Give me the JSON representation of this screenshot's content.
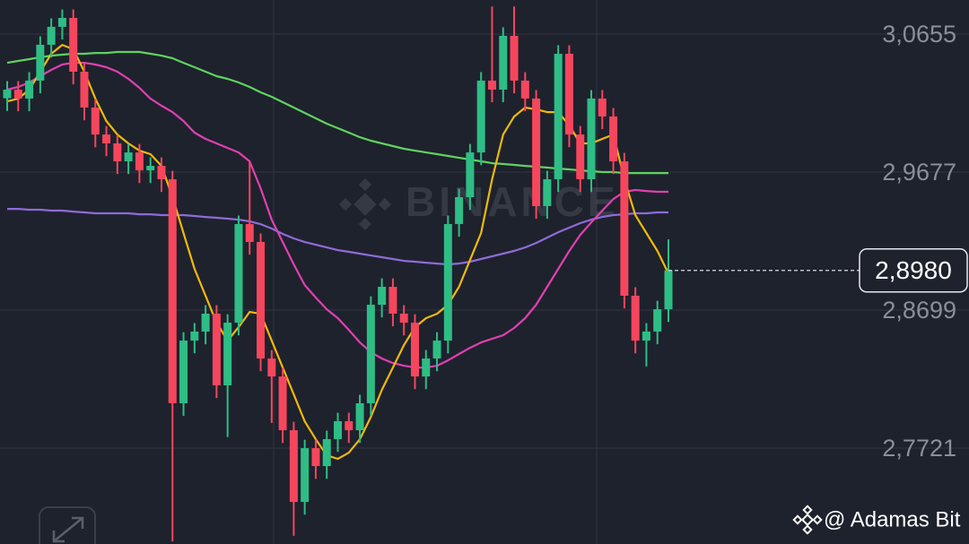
{
  "chart_data": {
    "type": "candlestick",
    "watermark": "BINANCE",
    "credit": "@ Adamas Bit",
    "up_color": "#2ebd85",
    "down_color": "#f6465d",
    "grid": true,
    "ylim": [
      2.7042,
      3.0896
    ],
    "yticks": [
      {
        "value": 3.0655,
        "label": "3,0655"
      },
      {
        "value": 2.9677,
        "label": "2,9677"
      },
      {
        "value": 2.8699,
        "label": "2,8699"
      },
      {
        "value": 2.7721,
        "label": "2,7721"
      }
    ],
    "last_price": {
      "value": 2.898,
      "label": "2,8980"
    },
    "open": [
      3.02,
      3.0261,
      3.0198,
      3.0325,
      3.0579,
      3.0706,
      3.0769,
      3.0388,
      3.0134,
      2.9943,
      2.988,
      2.9753,
      2.9816,
      2.9689,
      2.9721,
      2.9626,
      2.8039,
      2.8483,
      2.8547,
      2.8674,
      2.8166,
      2.861,
      2.9309,
      2.9182,
      2.8356,
      2.8229,
      2.7848,
      2.734,
      2.7721,
      2.7594,
      2.7785,
      2.7912,
      2.7848,
      2.8039,
      2.8737,
      2.8864,
      2.8674,
      2.861,
      2.8229,
      2.8356,
      2.8483,
      2.9309,
      2.9499,
      2.9816,
      3.0325,
      3.0261,
      3.0642,
      3.0325,
      3.0198,
      2.9436,
      2.9626,
      3.0515,
      2.9943,
      2.9626,
      3.0198,
      3.0071,
      2.9753,
      2.8801,
      2.8483,
      2.8547,
      2.8705
    ],
    "high": [
      3.0321,
      3.0321,
      3.0385,
      3.0639,
      3.0766,
      3.0829,
      3.0829,
      3.0448,
      3.0194,
      3.0003,
      2.994,
      2.9876,
      2.9876,
      2.9781,
      2.9781,
      2.9686,
      2.8543,
      2.8607,
      2.8734,
      2.8734,
      2.867,
      2.9369,
      2.975,
      2.9242,
      2.8416,
      2.8289,
      2.7908,
      2.7781,
      2.7781,
      2.7845,
      2.7972,
      2.7972,
      2.8099,
      2.8797,
      2.8924,
      2.8924,
      2.8734,
      2.867,
      2.8416,
      2.8543,
      2.9369,
      2.9559,
      2.9876,
      3.0385,
      3.085,
      3.0702,
      3.085,
      3.0385,
      3.0258,
      2.9686,
      3.0575,
      3.0575,
      3.0003,
      3.0258,
      3.0258,
      3.0131,
      2.9813,
      2.8861,
      2.8607,
      2.8765,
      2.92
    ],
    "low": [
      3.011,
      3.0108,
      3.0108,
      3.0235,
      3.0489,
      3.0616,
      3.0298,
      3.0044,
      2.9853,
      2.979,
      2.9663,
      2.9663,
      2.9599,
      2.9599,
      2.9536,
      2.706,
      2.7949,
      2.8393,
      2.8457,
      2.8076,
      2.78,
      2.852,
      2.9092,
      2.8266,
      2.79,
      2.7758,
      2.71,
      2.725,
      2.7504,
      2.7504,
      2.7695,
      2.7758,
      2.7758,
      2.7949,
      2.8647,
      2.8584,
      2.852,
      2.8139,
      2.8139,
      2.8266,
      2.8393,
      2.9219,
      2.9409,
      2.9726,
      3.0171,
      3.0171,
      3.0235,
      3.0108,
      2.9346,
      2.9346,
      2.9536,
      2.9853,
      2.9536,
      2.9536,
      2.9981,
      2.9663,
      2.8711,
      2.8393,
      2.83,
      2.8457,
      2.8615
    ],
    "close": [
      3.0261,
      3.0198,
      3.0325,
      3.0579,
      3.0706,
      3.0769,
      3.0388,
      3.0134,
      2.9943,
      2.988,
      2.9753,
      2.9816,
      2.9689,
      2.9721,
      2.9626,
      2.8039,
      2.8483,
      2.8547,
      2.8674,
      2.8166,
      2.861,
      2.9309,
      2.9182,
      2.8356,
      2.8229,
      2.7848,
      2.734,
      2.7721,
      2.7594,
      2.7785,
      2.7912,
      2.7848,
      2.8039,
      2.8737,
      2.8864,
      2.8674,
      2.861,
      2.8229,
      2.8356,
      2.8483,
      2.9309,
      2.9499,
      2.9816,
      3.0325,
      3.0261,
      3.0642,
      3.0325,
      3.0198,
      2.9436,
      2.9626,
      3.0515,
      2.9943,
      2.9626,
      3.0198,
      3.0071,
      2.9753,
      2.8801,
      2.8483,
      2.8547,
      2.8705,
      2.898
    ],
    "lines": [
      {
        "color": "#8e6bd8",
        "values": [
          2.9416,
          2.9416,
          2.941,
          2.941,
          2.9404,
          2.9404,
          2.9397,
          2.9391,
          2.9385,
          2.9385,
          2.9385,
          2.9385,
          2.9378,
          2.9378,
          2.9372,
          2.9372,
          2.9372,
          2.9366,
          2.9359,
          2.9353,
          2.9347,
          2.934,
          2.9328,
          2.9308,
          2.9277,
          2.9239,
          2.9207,
          2.9181,
          2.9162,
          2.9143,
          2.9124,
          2.9112,
          2.9099,
          2.9086,
          2.9074,
          2.9061,
          2.9048,
          2.9042,
          2.9035,
          2.9029,
          2.9023,
          2.9029,
          2.9042,
          2.9061,
          2.908,
          2.9099,
          2.9118,
          2.9143,
          2.9175,
          2.9213,
          2.9251,
          2.9283,
          2.9315,
          2.934,
          2.9359,
          2.9372,
          2.9378,
          2.9385,
          2.9385,
          2.9391,
          2.9391
        ]
      },
      {
        "color": "#5fd35f",
        "values": [
          3.0451,
          3.0464,
          3.0477,
          3.049,
          3.0502,
          3.0509,
          3.0515,
          3.0515,
          3.0521,
          3.0521,
          3.0528,
          3.0528,
          3.0528,
          3.0515,
          3.0502,
          3.0483,
          3.0451,
          3.042,
          3.0388,
          3.0356,
          3.0337,
          3.0312,
          3.028,
          3.0242,
          3.021,
          3.0172,
          3.0134,
          3.0096,
          3.0058,
          3.002,
          2.9988,
          2.9956,
          2.9924,
          2.9899,
          2.988,
          2.9861,
          2.9842,
          2.9829,
          2.9816,
          2.9804,
          2.9791,
          2.9778,
          2.9766,
          2.9753,
          2.974,
          2.9734,
          2.9728,
          2.9721,
          2.9715,
          2.9709,
          2.9702,
          2.9696,
          2.9689,
          2.9683,
          2.9677,
          2.9677,
          2.967,
          2.967,
          2.967,
          2.967,
          2.967
        ]
      },
      {
        "color": "#e040b0",
        "values": [
          3.0261,
          3.028,
          3.0312,
          3.0356,
          3.0401,
          3.0439,
          3.0451,
          3.0451,
          3.0439,
          3.042,
          3.0388,
          3.0337,
          3.0274,
          3.0197,
          3.0147,
          3.0102,
          3.0039,
          2.9956,
          2.9912,
          2.988,
          2.9848,
          2.9816,
          2.9753,
          2.9562,
          2.934,
          2.9181,
          2.9023,
          2.8877,
          2.8788,
          2.8705,
          2.8642,
          2.8559,
          2.847,
          2.84,
          2.8356,
          2.8324,
          2.8305,
          2.8292,
          2.8292,
          2.8305,
          2.8343,
          2.8388,
          2.8432,
          2.847,
          2.8496,
          2.8521,
          2.8572,
          2.8642,
          2.8737,
          2.8864,
          2.8991,
          2.9118,
          2.9232,
          2.9321,
          2.9404,
          2.9486,
          2.9537,
          2.955,
          2.9543,
          2.9537,
          2.9537
        ]
      },
      {
        "color": "#f0b90b",
        "values": [
          3.0178,
          3.0197,
          3.0261,
          3.0388,
          3.0515,
          3.0578,
          3.0547,
          3.0388,
          3.0197,
          3.0039,
          2.9943,
          2.988,
          2.9829,
          2.9804,
          2.9721,
          2.9499,
          2.9245,
          2.8991,
          2.88,
          2.861,
          2.8483,
          2.8578,
          2.8686,
          2.8673,
          2.8483,
          2.8292,
          2.8102,
          2.7911,
          2.7784,
          2.767,
          2.7645,
          2.7689,
          2.7784,
          2.7943,
          2.8134,
          2.8292,
          2.8451,
          2.8578,
          2.8642,
          2.8673,
          2.8737,
          2.8864,
          2.9054,
          2.9245,
          2.9626,
          2.9943,
          3.007,
          3.0134,
          3.0121,
          3.0102,
          3.0102,
          3.0007,
          2.988,
          2.988,
          2.9912,
          2.9943,
          2.9626,
          2.9372,
          2.9245,
          2.9118,
          2.8959
        ]
      }
    ]
  }
}
